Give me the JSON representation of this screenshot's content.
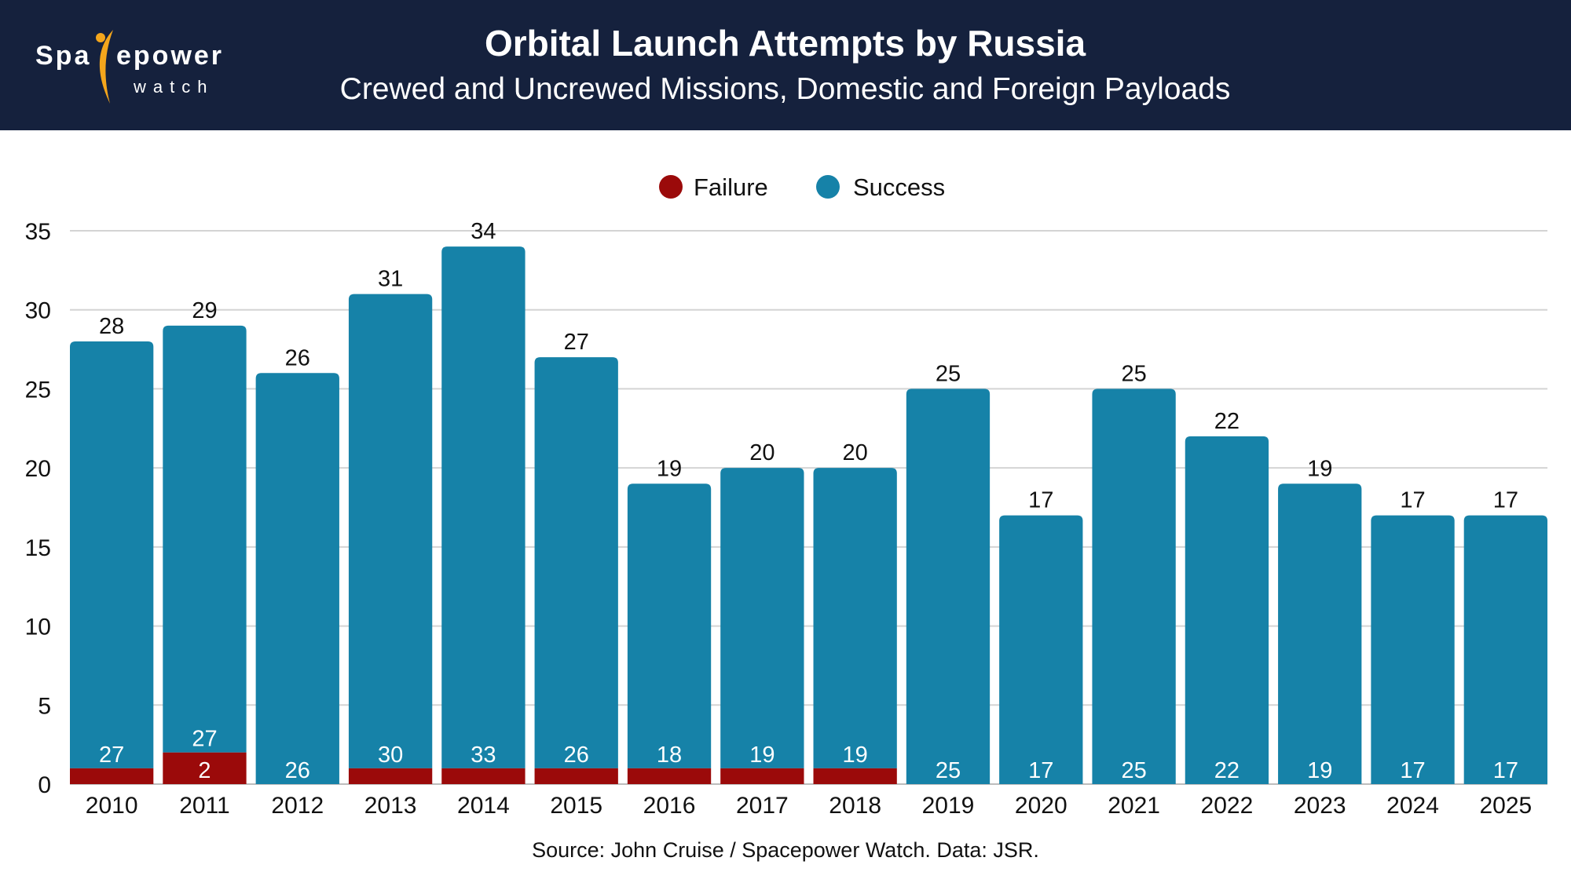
{
  "header": {
    "logo_text": "Spacepower",
    "logo_subtext": "watch",
    "title": "Orbital Launch Attempts by Russia",
    "subtitle": "Crewed and Uncrewed Missions, Domestic and Foreign Payloads"
  },
  "source": "Source: John Cruise / Spacepower Watch. Data: JSR.",
  "colors": {
    "header_bg": "#15213d",
    "failure": "#9b0a0a",
    "success": "#1682a8",
    "logo_accent": "#f4a61c"
  },
  "chart_data": {
    "type": "bar",
    "stacked": true,
    "title": "Orbital Launch Attempts by Russia",
    "subtitle": "Crewed and Uncrewed Missions, Domestic and Foreign Payloads",
    "xlabel": "",
    "ylabel": "",
    "ylim": [
      0,
      35
    ],
    "yticks": [
      0,
      5,
      10,
      15,
      20,
      25,
      30,
      35
    ],
    "grid": true,
    "legend_position": "top-center",
    "categories": [
      "2010",
      "2011",
      "2012",
      "2013",
      "2014",
      "2015",
      "2016",
      "2017",
      "2018",
      "2019",
      "2020",
      "2021",
      "2022",
      "2023",
      "2024",
      "2025"
    ],
    "series": [
      {
        "name": "Failure",
        "color": "#9b0a0a",
        "values": [
          1,
          2,
          0,
          1,
          1,
          1,
          1,
          1,
          1,
          0,
          0,
          0,
          0,
          0,
          0,
          0
        ]
      },
      {
        "name": "Success",
        "color": "#1682a8",
        "values": [
          27,
          27,
          26,
          30,
          33,
          26,
          18,
          19,
          19,
          25,
          17,
          25,
          22,
          19,
          17,
          17
        ]
      }
    ],
    "totals": [
      28,
      29,
      26,
      31,
      34,
      27,
      19,
      20,
      20,
      25,
      17,
      25,
      22,
      19,
      17,
      17
    ],
    "failure_labels_shown": [
      "",
      "2",
      "",
      "",
      "",
      "",
      "",
      "",
      "",
      "",
      "",
      "",
      "",
      "",
      "",
      ""
    ]
  }
}
